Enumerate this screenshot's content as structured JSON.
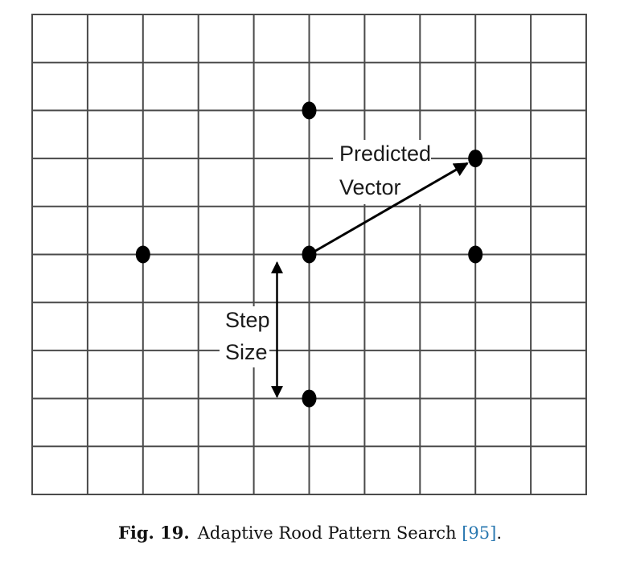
{
  "diagram": {
    "grid": {
      "columns": 10,
      "rows": 10
    },
    "points": [
      {
        "name": "center",
        "col": 5,
        "row": 5
      },
      {
        "name": "up",
        "col": 5,
        "row": 2
      },
      {
        "name": "down",
        "col": 5,
        "row": 8
      },
      {
        "name": "left",
        "col": 2,
        "row": 5
      },
      {
        "name": "right",
        "col": 8,
        "row": 5
      },
      {
        "name": "predicted",
        "col": 8,
        "row": 3
      }
    ],
    "labels": {
      "predicted_line1": "Predicted",
      "predicted_line2": "Vector",
      "step_line1": "Step",
      "step_line2": "Size"
    }
  },
  "caption": {
    "figure_number": "Fig. 19.",
    "text": "Adaptive Rood Pattern Search ",
    "reference": "[95]",
    "end": "."
  }
}
